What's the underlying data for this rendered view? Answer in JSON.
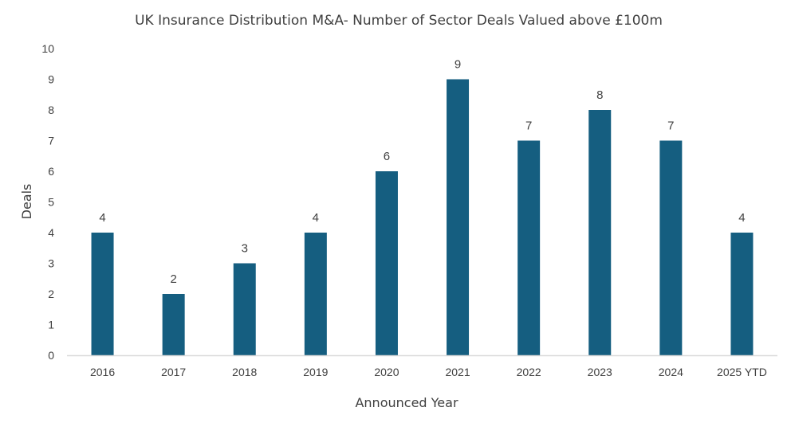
{
  "chart_data": {
    "type": "bar",
    "title": "UK Insurance Distribution M&A- Number of Sector Deals Valued above £100m",
    "xlabel": "Announced Year",
    "ylabel": "Deals",
    "categories": [
      "2016",
      "2017",
      "2018",
      "2019",
      "2020",
      "2021",
      "2022",
      "2023",
      "2024",
      "2025 YTD"
    ],
    "values": [
      4,
      2,
      3,
      4,
      6,
      9,
      7,
      8,
      7,
      4
    ],
    "ylim": [
      0,
      10
    ],
    "yticks": [
      "0",
      "1",
      "2",
      "3",
      "4",
      "5",
      "6",
      "7",
      "8",
      "9",
      "10"
    ],
    "grid": false,
    "legend": "none",
    "data_labels": true,
    "bar_color": "#155e80",
    "axis_color": "#d9d9d9"
  }
}
